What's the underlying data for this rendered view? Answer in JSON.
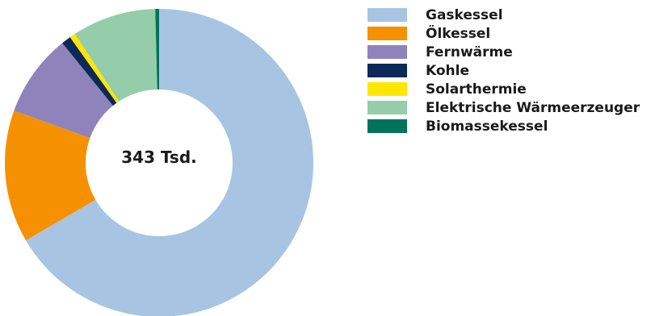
{
  "chart_data": {
    "type": "pie",
    "donut": true,
    "center_label": "343 Tsd.",
    "series": [
      {
        "name": "Gaskessel",
        "value": 66.6,
        "color": "#a7c5e3"
      },
      {
        "name": "Ölkessel",
        "value": 13.9,
        "color": "#f59100"
      },
      {
        "name": "Fernwärme",
        "value": 8.7,
        "color": "#8f83bc"
      },
      {
        "name": "Kohle",
        "value": 1.0,
        "color": "#0d2957"
      },
      {
        "name": "Solarthermie",
        "value": 0.6,
        "color": "#ffe600"
      },
      {
        "name": "Elektrische Wärmeerzeuger",
        "value": 8.8,
        "color": "#95cdaa"
      },
      {
        "name": "Biomassekessel",
        "value": 0.4,
        "color": "#00735a"
      }
    ],
    "legend_position": "right"
  }
}
